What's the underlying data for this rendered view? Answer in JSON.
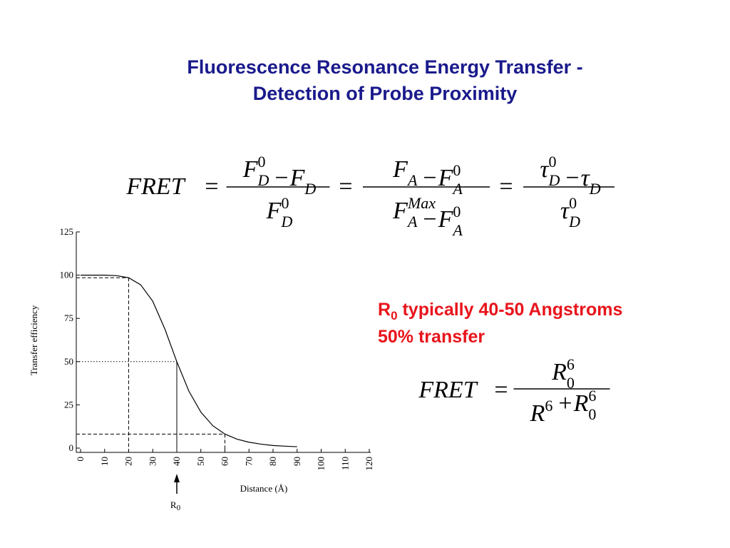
{
  "title": [
    "Fluorescence Resonance Energy Transfer -",
    "Detection of Probe Proximity"
  ],
  "equation": {
    "lhs": "FRET",
    "eq": "=",
    "fractions": [
      {
        "num": [
          {
            "t": "F",
            "sub": "D",
            "sup": "0"
          },
          {
            "t": "−"
          },
          {
            "t": "F",
            "sub": "D"
          }
        ],
        "den": [
          {
            "t": "F",
            "sub": "D",
            "sup": "0"
          }
        ]
      },
      {
        "num": [
          {
            "t": "F",
            "sub": "A"
          },
          {
            "t": "−"
          },
          {
            "t": "F",
            "sub": "A",
            "sup": "0"
          }
        ],
        "den": [
          {
            "t": "F",
            "sub": "A",
            "sup": "Max"
          },
          {
            "t": "−"
          },
          {
            "t": "F",
            "sub": "A",
            "sup": "0"
          }
        ]
      },
      {
        "num": [
          {
            "t": "τ",
            "sub": "D",
            "sup": "0"
          },
          {
            "t": "−"
          },
          {
            "t": "τ",
            "sub": "D"
          }
        ],
        "den": [
          {
            "t": "τ",
            "sub": "D",
            "sup": "0"
          }
        ]
      }
    ]
  },
  "note": {
    "symbol": "R",
    "sub": "0",
    "text": " typically 40-50 Angstroms",
    "line2": "50% transfer"
  },
  "equation2": {
    "lhs": "FRET",
    "eq": "=",
    "fractions": [
      {
        "num": [
          {
            "t": "R",
            "sub": "0",
            "sup": "6"
          }
        ],
        "den": [
          {
            "t": "R",
            "sup": "6"
          },
          {
            "t": "+"
          },
          {
            "t": "R",
            "sub": "0",
            "sup": "6"
          }
        ]
      }
    ]
  },
  "chart_data": {
    "type": "line",
    "x": [
      0,
      5,
      10,
      15,
      20,
      25,
      30,
      35,
      40,
      45,
      50,
      55,
      60,
      65,
      70,
      75,
      80,
      85,
      90
    ],
    "values": [
      100,
      100,
      100,
      99.7,
      98.5,
      94.4,
      84.9,
      69,
      50,
      33,
      20.8,
      12.9,
      8.1,
      5.2,
      3.4,
      2.3,
      1.5,
      1.1,
      0.8
    ],
    "color": "#000000",
    "xlim": [
      0,
      120
    ],
    "xticks": [
      0,
      10,
      20,
      30,
      40,
      50,
      60,
      70,
      80,
      90,
      100,
      110,
      120
    ],
    "ylim": [
      0,
      125
    ],
    "yticks": [
      0,
      25,
      50,
      75,
      100,
      125
    ],
    "xlabel": "Distance (Å)",
    "ylabel": "Transfer efficiency",
    "guides": [
      {
        "x": 20,
        "y": 98.5,
        "style": "dashed"
      },
      {
        "x": 40,
        "y": 50,
        "style": "dotted"
      },
      {
        "x": 60,
        "y": 8.1,
        "style": "dashed"
      }
    ],
    "marker": {
      "x": 40,
      "label": "R",
      "sub": "0"
    }
  }
}
